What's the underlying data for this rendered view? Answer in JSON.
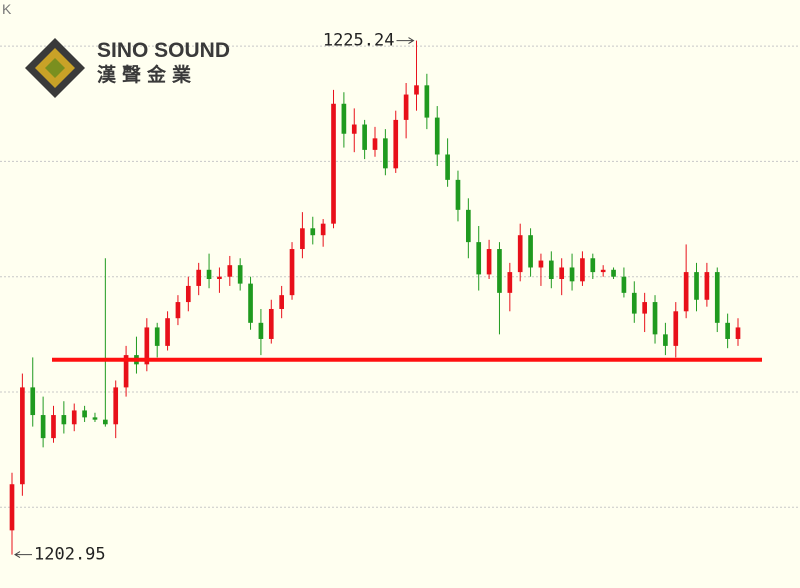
{
  "label": "K",
  "logo": {
    "name": "SINO SOUND",
    "chinese": "漢聲金業"
  },
  "chart_data": {
    "type": "candlestick",
    "open": [
      1204.0,
      1206.0,
      1210.2,
      1209.0,
      1208.0,
      1209.0,
      1208.6,
      1209.2,
      1208.9,
      1208.8,
      1208.6,
      1210.2,
      1211.6,
      1211.2,
      1212.8,
      1212.0,
      1213.2,
      1213.9,
      1214.6,
      1215.3,
      1214.9,
      1215.0,
      1215.5,
      1214.7,
      1213.0,
      1212.3,
      1213.6,
      1214.2,
      1216.2,
      1217.1,
      1216.8,
      1217.3,
      1222.5,
      1221.2,
      1221.6,
      1220.5,
      1221.0,
      1219.7,
      1221.8,
      1222.9,
      1223.3,
      1221.9,
      1220.3,
      1219.2,
      1217.9,
      1216.5,
      1215.1,
      1216.2,
      1214.3,
      1215.2,
      1216.8,
      1215.4,
      1215.7,
      1214.9,
      1215.4,
      1214.8,
      1215.8,
      1215.2,
      1215.3,
      1215.0,
      1214.3,
      1213.4,
      1213.9,
      1212.5,
      1212.0,
      1213.5,
      1215.2,
      1214.0,
      1215.2,
      1213.0,
      1212.3
    ],
    "high": [
      1206.5,
      1210.8,
      1211.5,
      1209.8,
      1209.4,
      1209.6,
      1209.5,
      1209.4,
      1209.1,
      1215.8,
      1210.5,
      1212.0,
      1212.4,
      1213.2,
      1213.0,
      1213.5,
      1214.2,
      1215.0,
      1215.6,
      1216.0,
      1215.4,
      1215.9,
      1215.8,
      1215.0,
      1213.6,
      1214.0,
      1214.6,
      1216.5,
      1217.8,
      1217.6,
      1217.5,
      1223.1,
      1223.0,
      1222.3,
      1221.8,
      1221.5,
      1221.4,
      1222.2,
      1223.4,
      1225.24,
      1223.8,
      1222.4,
      1221.0,
      1219.6,
      1218.4,
      1217.2,
      1216.6,
      1216.5,
      1215.6,
      1217.3,
      1217.1,
      1216.0,
      1216.1,
      1215.8,
      1216.0,
      1216.1,
      1216.0,
      1215.5,
      1215.4,
      1215.4,
      1214.8,
      1214.3,
      1214.2,
      1213.0,
      1213.9,
      1216.4,
      1215.6,
      1215.6,
      1215.4,
      1213.4,
      1213.2
    ],
    "low": [
      1202.95,
      1205.5,
      1208.5,
      1207.6,
      1207.8,
      1208.2,
      1208.3,
      1208.7,
      1208.7,
      1208.5,
      1208.0,
      1209.8,
      1210.8,
      1210.9,
      1211.5,
      1211.8,
      1212.9,
      1213.5,
      1214.2,
      1214.5,
      1214.3,
      1214.6,
      1214.4,
      1212.7,
      1211.6,
      1212.1,
      1213.2,
      1214.0,
      1215.8,
      1216.4,
      1216.3,
      1217.1,
      1220.6,
      1220.4,
      1220.1,
      1220.2,
      1219.4,
      1219.5,
      1221.0,
      1222.2,
      1221.4,
      1219.8,
      1218.9,
      1217.4,
      1215.8,
      1214.4,
      1214.9,
      1212.5,
      1213.5,
      1214.8,
      1215.0,
      1214.6,
      1214.5,
      1214.2,
      1214.4,
      1214.6,
      1214.9,
      1215.0,
      1214.9,
      1214.1,
      1213.0,
      1212.6,
      1212.1,
      1211.6,
      1211.5,
      1213.2,
      1213.5,
      1213.7,
      1212.6,
      1211.9,
      1212.0
    ],
    "close": [
      1206.0,
      1210.2,
      1209.0,
      1208.0,
      1209.0,
      1208.6,
      1209.2,
      1208.9,
      1208.8,
      1208.6,
      1210.2,
      1211.6,
      1211.2,
      1212.8,
      1212.0,
      1213.2,
      1213.9,
      1214.6,
      1215.3,
      1214.9,
      1215.0,
      1215.5,
      1214.7,
      1213.0,
      1212.3,
      1213.6,
      1214.2,
      1216.2,
      1217.1,
      1216.8,
      1217.3,
      1222.5,
      1221.2,
      1221.6,
      1220.5,
      1221.0,
      1219.7,
      1221.8,
      1222.9,
      1223.3,
      1221.9,
      1220.3,
      1219.2,
      1217.9,
      1216.5,
      1215.1,
      1216.2,
      1214.3,
      1215.2,
      1216.8,
      1215.4,
      1215.7,
      1214.9,
      1215.4,
      1214.8,
      1215.8,
      1215.2,
      1215.3,
      1215.0,
      1214.3,
      1213.4,
      1213.9,
      1212.5,
      1212.0,
      1213.5,
      1215.2,
      1214.0,
      1215.2,
      1213.0,
      1212.3,
      1212.8
    ],
    "up_color": "#e8101a",
    "down_color": "#1f9a1f",
    "ylim": [
      1201.5,
      1227
    ],
    "yticks": [
      1205,
      1210,
      1215,
      1220,
      1225
    ],
    "grid": true,
    "support_line": {
      "value": 1211.4,
      "color": "#ff1010"
    },
    "high_label_index": 39,
    "low_label_index": 0
  }
}
